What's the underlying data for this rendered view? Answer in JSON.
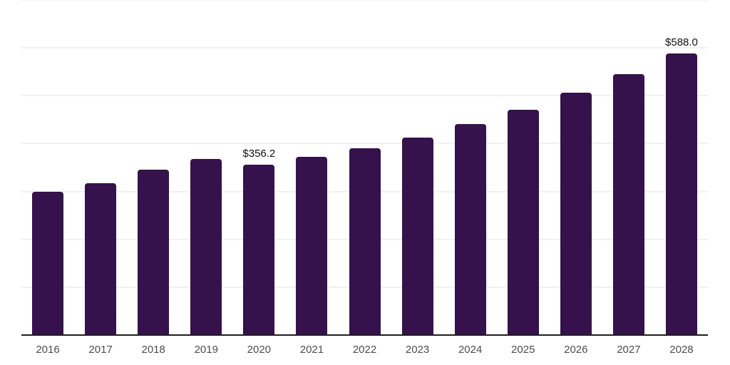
{
  "chart_data": {
    "type": "bar",
    "title": "",
    "xlabel": "",
    "ylabel": "",
    "categories": [
      "2016",
      "2017",
      "2018",
      "2019",
      "2020",
      "2021",
      "2022",
      "2023",
      "2024",
      "2025",
      "2026",
      "2027",
      "2028"
    ],
    "values": [
      299,
      318,
      345,
      368,
      356.2,
      372,
      390,
      412,
      441,
      471,
      507,
      545,
      588
    ],
    "point_labels": [
      "",
      "",
      "",
      "",
      "$356.2",
      "",
      "",
      "",
      "",
      "",
      "",
      "",
      "$588.0"
    ],
    "ylim": [
      0,
      700
    ],
    "gridline_interval": 100,
    "grid": true,
    "legend": false,
    "y_tick_labels_visible": false
  },
  "colors": {
    "background": "#ffffff",
    "bar_fill": "#35124b",
    "gridline": "#f1f1f4",
    "x_axis_line": "#1f1f1f",
    "x_tick_label": "#4d4d4d",
    "data_label": "#111111"
  }
}
